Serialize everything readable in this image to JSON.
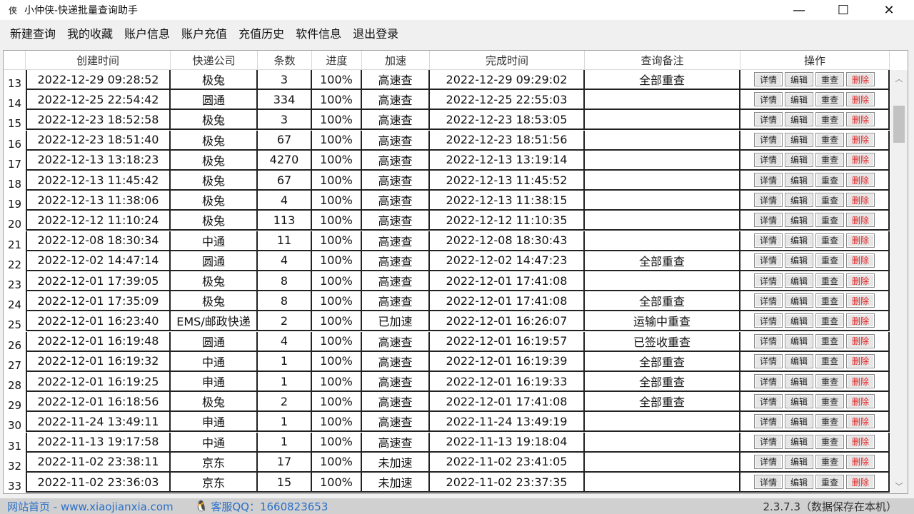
{
  "window": {
    "title": "小仲侠-快递批量查询助手",
    "logo": "侠",
    "minimize": "—",
    "maximize": "☐",
    "close": "✕"
  },
  "menu": [
    "新建查询",
    "我的收藏",
    "账户信息",
    "账户充值",
    "充值历史",
    "软件信息",
    "退出登录"
  ],
  "table": {
    "headers": [
      "创建时间",
      "快递公司",
      "条数",
      "进度",
      "加速",
      "完成时间",
      "查询备注",
      "操作"
    ],
    "action_labels": [
      "详情",
      "编辑",
      "重查",
      "删除"
    ],
    "rows": [
      {
        "n": "13",
        "created": "2022-12-29 09:28:52",
        "company": "极兔",
        "count": "3",
        "progress": "100%",
        "accel": "高速查",
        "finished": "2022-12-29 09:29:02",
        "note": "全部重查"
      },
      {
        "n": "14",
        "created": "2022-12-25 22:54:42",
        "company": "圆通",
        "count": "334",
        "progress": "100%",
        "accel": "高速查",
        "finished": "2022-12-25 22:55:03",
        "note": ""
      },
      {
        "n": "15",
        "created": "2022-12-23 18:52:58",
        "company": "极兔",
        "count": "3",
        "progress": "100%",
        "accel": "高速查",
        "finished": "2022-12-23 18:53:05",
        "note": ""
      },
      {
        "n": "16",
        "created": "2022-12-23 18:51:40",
        "company": "极兔",
        "count": "67",
        "progress": "100%",
        "accel": "高速查",
        "finished": "2022-12-23 18:51:56",
        "note": ""
      },
      {
        "n": "17",
        "created": "2022-12-13 13:18:23",
        "company": "极兔",
        "count": "4270",
        "progress": "100%",
        "accel": "高速查",
        "finished": "2022-12-13 13:19:14",
        "note": ""
      },
      {
        "n": "18",
        "created": "2022-12-13 11:45:42",
        "company": "极兔",
        "count": "67",
        "progress": "100%",
        "accel": "高速查",
        "finished": "2022-12-13 11:45:52",
        "note": ""
      },
      {
        "n": "19",
        "created": "2022-12-13 11:38:06",
        "company": "极兔",
        "count": "4",
        "progress": "100%",
        "accel": "高速查",
        "finished": "2022-12-13 11:38:15",
        "note": ""
      },
      {
        "n": "20",
        "created": "2022-12-12 11:10:24",
        "company": "极兔",
        "count": "113",
        "progress": "100%",
        "accel": "高速查",
        "finished": "2022-12-12 11:10:35",
        "note": ""
      },
      {
        "n": "21",
        "created": "2022-12-08 18:30:34",
        "company": "中通",
        "count": "11",
        "progress": "100%",
        "accel": "高速查",
        "finished": "2022-12-08 18:30:43",
        "note": ""
      },
      {
        "n": "22",
        "created": "2022-12-02 14:47:14",
        "company": "圆通",
        "count": "4",
        "progress": "100%",
        "accel": "高速查",
        "finished": "2022-12-02 14:47:23",
        "note": "全部重查"
      },
      {
        "n": "23",
        "created": "2022-12-01 17:39:05",
        "company": "极兔",
        "count": "8",
        "progress": "100%",
        "accel": "高速查",
        "finished": "2022-12-01 17:41:08",
        "note": ""
      },
      {
        "n": "24",
        "created": "2022-12-01 17:35:09",
        "company": "极兔",
        "count": "8",
        "progress": "100%",
        "accel": "高速查",
        "finished": "2022-12-01 17:41:08",
        "note": "全部重查"
      },
      {
        "n": "25",
        "created": "2022-12-01 16:23:40",
        "company": "EMS/邮政快递",
        "count": "2",
        "progress": "100%",
        "accel": "已加速",
        "finished": "2022-12-01 16:26:07",
        "note": "运输中重查"
      },
      {
        "n": "26",
        "created": "2022-12-01 16:19:48",
        "company": "圆通",
        "count": "4",
        "progress": "100%",
        "accel": "高速查",
        "finished": "2022-12-01 16:19:57",
        "note": "已签收重查"
      },
      {
        "n": "27",
        "created": "2022-12-01 16:19:32",
        "company": "中通",
        "count": "1",
        "progress": "100%",
        "accel": "高速查",
        "finished": "2022-12-01 16:19:39",
        "note": "全部重查"
      },
      {
        "n": "28",
        "created": "2022-12-01 16:19:25",
        "company": "申通",
        "count": "1",
        "progress": "100%",
        "accel": "高速查",
        "finished": "2022-12-01 16:19:33",
        "note": "全部重查"
      },
      {
        "n": "29",
        "created": "2022-12-01 16:18:56",
        "company": "极兔",
        "count": "2",
        "progress": "100%",
        "accel": "高速查",
        "finished": "2022-12-01 17:41:08",
        "note": "全部重查"
      },
      {
        "n": "30",
        "created": "2022-11-24 13:49:11",
        "company": "申通",
        "count": "1",
        "progress": "100%",
        "accel": "高速查",
        "finished": "2022-11-24 13:49:19",
        "note": ""
      },
      {
        "n": "31",
        "created": "2022-11-13 19:17:58",
        "company": "中通",
        "count": "1",
        "progress": "100%",
        "accel": "高速查",
        "finished": "2022-11-13 19:18:04",
        "note": ""
      },
      {
        "n": "32",
        "created": "2022-11-02 23:38:11",
        "company": "京东",
        "count": "17",
        "progress": "100%",
        "accel": "未加速",
        "finished": "2022-11-02 23:41:05",
        "note": ""
      },
      {
        "n": "33",
        "created": "2022-11-02 23:36:03",
        "company": "京东",
        "count": "15",
        "progress": "100%",
        "accel": "未加速",
        "finished": "2022-11-02 23:37:35",
        "note": ""
      }
    ]
  },
  "scroll": {
    "up": "︿",
    "down": "﹀"
  },
  "status": {
    "website": "网站首页 - www.xiaojianxia.com",
    "qq": "客服QQ：1660823653",
    "version": "2.3.7.3（数据保存在本机）"
  },
  "colors": {
    "delete": "#e02020",
    "link": "#2a6fc9"
  }
}
